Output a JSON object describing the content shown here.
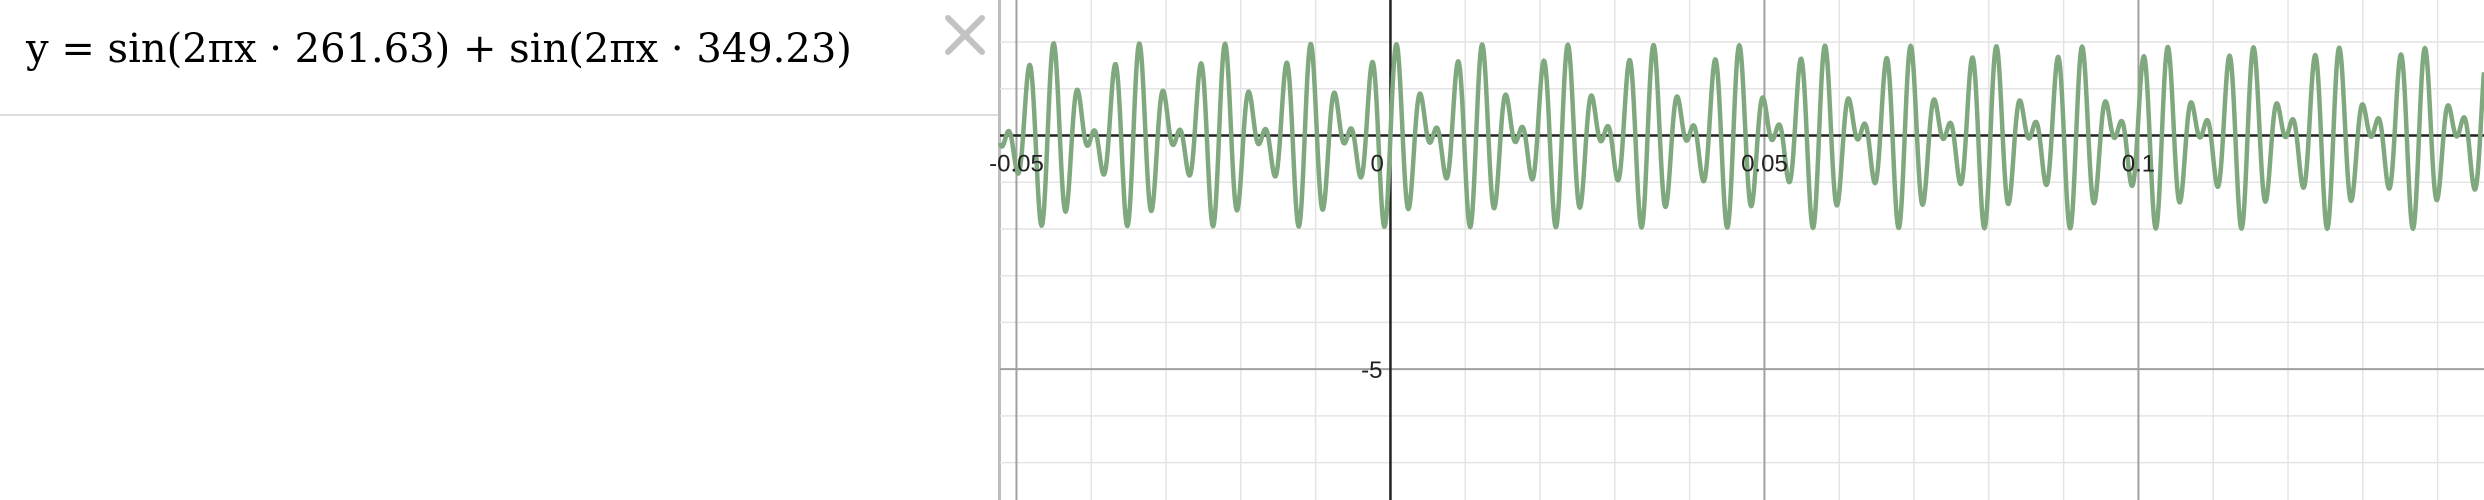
{
  "expression": {
    "text": "y =  sin(2πx · 261.63) + sin(2πx · 349.23)",
    "frequencies": [
      261.63,
      349.23
    ]
  },
  "icons": {
    "delete": "close-icon"
  },
  "graph": {
    "curve_color": "#80a87f",
    "x_range": [
      -0.0522,
      0.1462
    ],
    "y_range": [
      -7.8,
      2.9
    ],
    "x_tick_labels": [
      "-0.05",
      "0",
      "0.05",
      "0.1"
    ],
    "y_tick_labels": [
      "-5"
    ]
  }
}
